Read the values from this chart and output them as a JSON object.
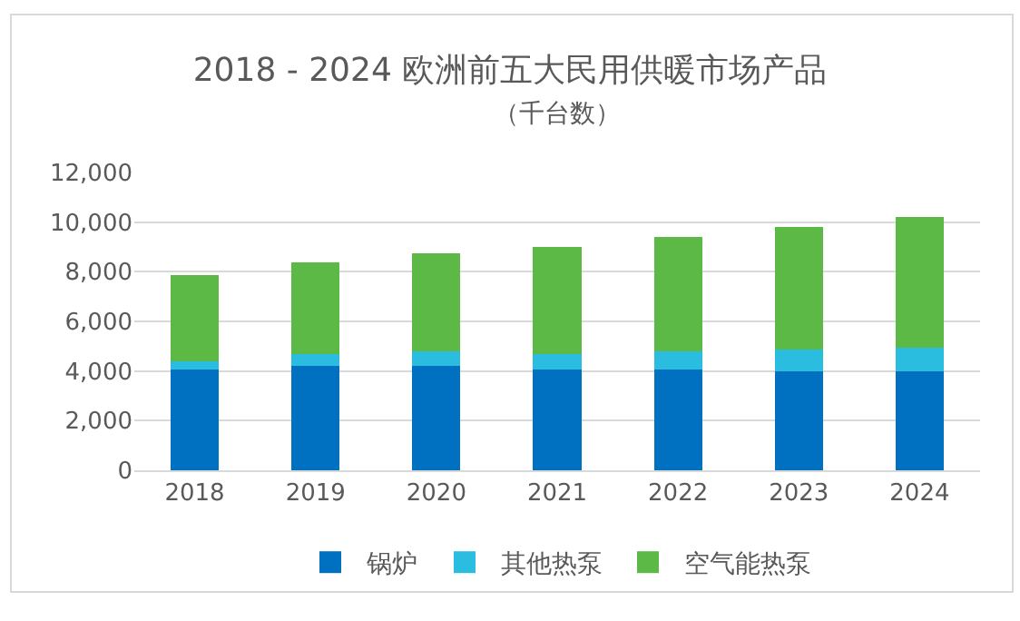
{
  "chart_data": {
    "type": "bar",
    "stacked": true,
    "title": "2018 - 2024 欧洲前五大民用供暖市场产品",
    "subtitle": "（千台数）",
    "categories": [
      "2018",
      "2019",
      "2020",
      "2021",
      "2022",
      "2023",
      "2024"
    ],
    "series": [
      {
        "name": "锅炉",
        "color": "#0070c0",
        "values": [
          4050,
          4200,
          4200,
          4050,
          4050,
          4000,
          4000
        ]
      },
      {
        "name": "其他热泵",
        "color": "#2bbde0",
        "values": [
          350,
          480,
          600,
          650,
          750,
          850,
          950
        ]
      },
      {
        "name": "空气能热泵",
        "color": "#5cb946",
        "values": [
          3450,
          3700,
          3950,
          4300,
          4600,
          4950,
          5250
        ]
      }
    ],
    "ylim": [
      0,
      12000
    ],
    "yticks": [
      0,
      {
        "value": 2000,
        "label": "2,000"
      },
      {
        "value": 4000,
        "label": "4,000"
      },
      {
        "value": 6000,
        "label": "6,000"
      },
      {
        "value": 8000,
        "label": "8,000"
      },
      {
        "value": 10000,
        "label": "10,000"
      },
      {
        "value": 12000,
        "label": "12,000"
      }
    ],
    "grid": "y",
    "legend": "bottom"
  }
}
